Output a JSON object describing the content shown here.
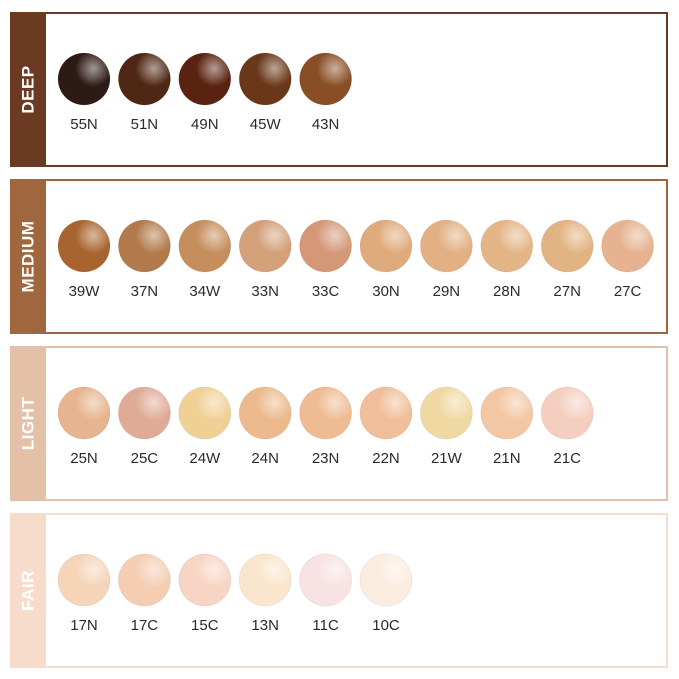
{
  "groups": [
    {
      "label": "DEEP",
      "color": "#6b3a22",
      "shades": [
        {
          "name": "55N",
          "color": "#2e1a14"
        },
        {
          "name": "51N",
          "color": "#4f2715"
        },
        {
          "name": "49N",
          "color": "#5a2211"
        },
        {
          "name": "45W",
          "color": "#6a3718"
        },
        {
          "name": "43N",
          "color": "#8a4e26"
        }
      ]
    },
    {
      "label": "MEDIUM",
      "color": "#a0663d",
      "shades": [
        {
          "name": "39W",
          "color": "#a8642e"
        },
        {
          "name": "37N",
          "color": "#b27a4b"
        },
        {
          "name": "34W",
          "color": "#c58e5c"
        },
        {
          "name": "33N",
          "color": "#d3a07a"
        },
        {
          "name": "33C",
          "color": "#d49878"
        },
        {
          "name": "30N",
          "color": "#dfaa7c"
        },
        {
          "name": "29N",
          "color": "#e2b083"
        },
        {
          "name": "28N",
          "color": "#e4b587"
        },
        {
          "name": "27N",
          "color": "#e2b382"
        },
        {
          "name": "27C",
          "color": "#e6b290"
        }
      ]
    },
    {
      "label": "LIGHT",
      "color": "#e5c0a8",
      "shades": [
        {
          "name": "25N",
          "color": "#e6b48e"
        },
        {
          "name": "25C",
          "color": "#e0ab96"
        },
        {
          "name": "24W",
          "color": "#f0d095"
        },
        {
          "name": "24N",
          "color": "#ecba8c"
        },
        {
          "name": "23N",
          "color": "#efbb92"
        },
        {
          "name": "22N",
          "color": "#f0be98"
        },
        {
          "name": "21W",
          "color": "#f0d8a3"
        },
        {
          "name": "21N",
          "color": "#f3c7a3"
        },
        {
          "name": "21C",
          "color": "#f4cfc0"
        }
      ]
    },
    {
      "label": "FAIR",
      "color": "#f7dccb",
      "shades": [
        {
          "name": "17N",
          "color": "#f6d4b8"
        },
        {
          "name": "17C",
          "color": "#f5cdb3"
        },
        {
          "name": "15C",
          "color": "#f8d4c5"
        },
        {
          "name": "13N",
          "color": "#f9e6cc"
        },
        {
          "name": "11C",
          "color": "#f9e2e3"
        },
        {
          "name": "10C",
          "color": "#faede0"
        }
      ]
    }
  ]
}
